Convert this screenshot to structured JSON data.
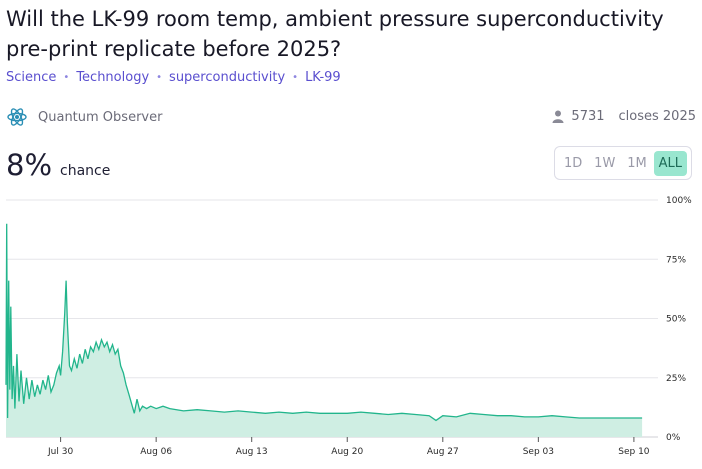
{
  "market": {
    "title": "Will the LK-99 room temp, ambient pressure superconductivity pre-print replicate before 2025?",
    "tags": [
      "Science",
      "Technology",
      "superconductivity",
      "LK-99"
    ],
    "creator": "Quantum Observer",
    "creator_icon": "atom-icon",
    "traders": "5731",
    "traders_icon": "user-icon",
    "closes": "closes 2025",
    "probability": "8%",
    "probability_label": "chance"
  },
  "range_buttons": {
    "d1": "1D",
    "w1": "1W",
    "m1": "1M",
    "all": "ALL",
    "selected": "ALL"
  },
  "colors": {
    "line": "#22b58c",
    "fill": "#cfeee3",
    "accent": "#5a4fcf",
    "active_range": "#99e6cf"
  },
  "chart_data": {
    "type": "area",
    "title": "",
    "xlabel": "",
    "ylabel": "",
    "ylim": [
      0,
      100
    ],
    "y_ticks": [
      "100%",
      "75%",
      "50%",
      "25%",
      "0%"
    ],
    "x_ticks": [
      "Jul 30",
      "Aug 06",
      "Aug 13",
      "Aug 20",
      "Aug 27",
      "Sep 03",
      "Sep 10"
    ],
    "x_start": "Jul 26",
    "x_end": "Sep 10",
    "grid": true,
    "series": [
      {
        "values_pct": [
          [
            0,
            22
          ],
          [
            0.05,
            90
          ],
          [
            0.12,
            8
          ],
          [
            0.2,
            66
          ],
          [
            0.28,
            20
          ],
          [
            0.35,
            55
          ],
          [
            0.45,
            16
          ],
          [
            0.55,
            30
          ],
          [
            0.65,
            12
          ],
          [
            0.8,
            35
          ],
          [
            0.95,
            15
          ],
          [
            1.1,
            28
          ],
          [
            1.3,
            14
          ],
          [
            1.5,
            25
          ],
          [
            1.7,
            16
          ],
          [
            1.9,
            24
          ],
          [
            2.1,
            17
          ],
          [
            2.3,
            22
          ],
          [
            2.5,
            18
          ],
          [
            2.7,
            24
          ],
          [
            2.9,
            20
          ],
          [
            3.1,
            26
          ],
          [
            3.3,
            19
          ],
          [
            3.5,
            22
          ],
          [
            3.7,
            27
          ],
          [
            3.9,
            30
          ],
          [
            4.0,
            26
          ],
          [
            4.15,
            36
          ],
          [
            4.3,
            52
          ],
          [
            4.4,
            66
          ],
          [
            4.5,
            48
          ],
          [
            4.65,
            30
          ],
          [
            4.8,
            28
          ],
          [
            5.0,
            33
          ],
          [
            5.2,
            29
          ],
          [
            5.4,
            35
          ],
          [
            5.6,
            31
          ],
          [
            5.8,
            37
          ],
          [
            6.0,
            33
          ],
          [
            6.2,
            38
          ],
          [
            6.4,
            36
          ],
          [
            6.6,
            40
          ],
          [
            6.8,
            37
          ],
          [
            7.0,
            41
          ],
          [
            7.2,
            38
          ],
          [
            7.4,
            40
          ],
          [
            7.6,
            36
          ],
          [
            7.8,
            39
          ],
          [
            8.0,
            35
          ],
          [
            8.2,
            37
          ],
          [
            8.4,
            30
          ],
          [
            8.6,
            27
          ],
          [
            8.8,
            22
          ],
          [
            9.0,
            18
          ],
          [
            9.2,
            14
          ],
          [
            9.4,
            10
          ],
          [
            9.6,
            16
          ],
          [
            9.8,
            11
          ],
          [
            10.0,
            13
          ],
          [
            10.3,
            12
          ],
          [
            10.6,
            13
          ],
          [
            11.0,
            12
          ],
          [
            11.5,
            13
          ],
          [
            12,
            12
          ],
          [
            13,
            11
          ],
          [
            14,
            11.5
          ],
          [
            15,
            11
          ],
          [
            16,
            10.5
          ],
          [
            17,
            11
          ],
          [
            18,
            10.5
          ],
          [
            19,
            10
          ],
          [
            20,
            10.5
          ],
          [
            21,
            10
          ],
          [
            22,
            10.5
          ],
          [
            23,
            10
          ],
          [
            24,
            10
          ],
          [
            25,
            10
          ],
          [
            26,
            10.5
          ],
          [
            27,
            10
          ],
          [
            28,
            9.5
          ],
          [
            29,
            10
          ],
          [
            30,
            9.5
          ],
          [
            31,
            9
          ],
          [
            31.5,
            7
          ],
          [
            32,
            9
          ],
          [
            33,
            8.5
          ],
          [
            34,
            10
          ],
          [
            35,
            9.5
          ],
          [
            36,
            9
          ],
          [
            37,
            9
          ],
          [
            38,
            8.5
          ],
          [
            39,
            8.5
          ],
          [
            40,
            9
          ],
          [
            41,
            8.5
          ],
          [
            42,
            8
          ],
          [
            43,
            8
          ],
          [
            44,
            8
          ],
          [
            45,
            8
          ],
          [
            46,
            8
          ],
          [
            46.6,
            8
          ]
        ]
      }
    ]
  }
}
